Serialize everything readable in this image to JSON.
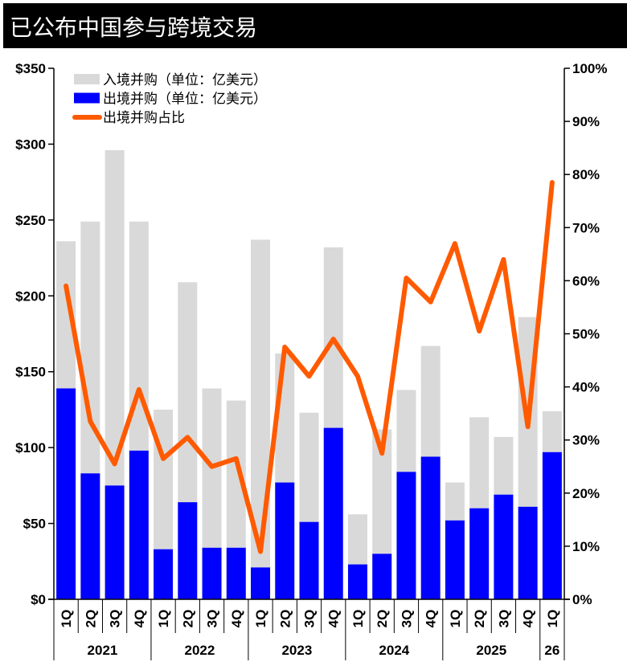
{
  "chart_data": {
    "type": "bar",
    "title": "已公布中国参与跨境交易",
    "stacked": true,
    "categories": [
      "1Q",
      "2Q",
      "3Q",
      "4Q",
      "1Q",
      "2Q",
      "3Q",
      "4Q",
      "1Q",
      "2Q",
      "3Q",
      "4Q",
      "1Q",
      "2Q",
      "3Q",
      "4Q",
      "1Q",
      "2Q",
      "3Q",
      "4Q",
      "1Q"
    ],
    "groups": [
      {
        "label": "2021",
        "count": 4
      },
      {
        "label": "2022",
        "count": 4
      },
      {
        "label": "2023",
        "count": 4
      },
      {
        "label": "2024",
        "count": 4
      },
      {
        "label": "2025",
        "count": 4
      },
      {
        "label": "26",
        "count": 1
      }
    ],
    "series": [
      {
        "name": "出境并购（单位：亿美元）",
        "type": "bar",
        "axis": "left",
        "color": "#0000ff",
        "values": [
          139,
          83,
          75,
          98,
          33,
          64,
          34,
          34,
          21,
          77,
          51,
          113,
          23,
          30,
          84,
          94,
          52,
          60,
          69,
          61,
          97
        ]
      },
      {
        "name": "入境并购（单位：亿美元）",
        "type": "bar",
        "axis": "left",
        "color": "#d9d9d9",
        "values": [
          97,
          166,
          221,
          151,
          92,
          145,
          105,
          97,
          216,
          85,
          72,
          119,
          33,
          82,
          54,
          73,
          25,
          60,
          38,
          125,
          27
        ]
      },
      {
        "name": "出境并购占比",
        "type": "line",
        "axis": "right",
        "color": "#ff5a00",
        "values": [
          59,
          33.5,
          25.5,
          39.5,
          26.5,
          30.5,
          25,
          26.5,
          9,
          47.5,
          42,
          49,
          42,
          27.5,
          60.5,
          56,
          67,
          50.5,
          64,
          32.5,
          78.5
        ]
      }
    ],
    "ylim": [
      0,
      350
    ],
    "y_ticks": [
      "$0",
      "$50",
      "$100",
      "$150",
      "$200",
      "$250",
      "$300",
      "$350"
    ],
    "y2lim": [
      0,
      100
    ],
    "y2_ticks": [
      "0%",
      "10%",
      "20%",
      "30%",
      "40%",
      "50%",
      "60%",
      "70%",
      "80%",
      "90%",
      "100%"
    ],
    "legend_position": "top-left",
    "grid": false
  }
}
